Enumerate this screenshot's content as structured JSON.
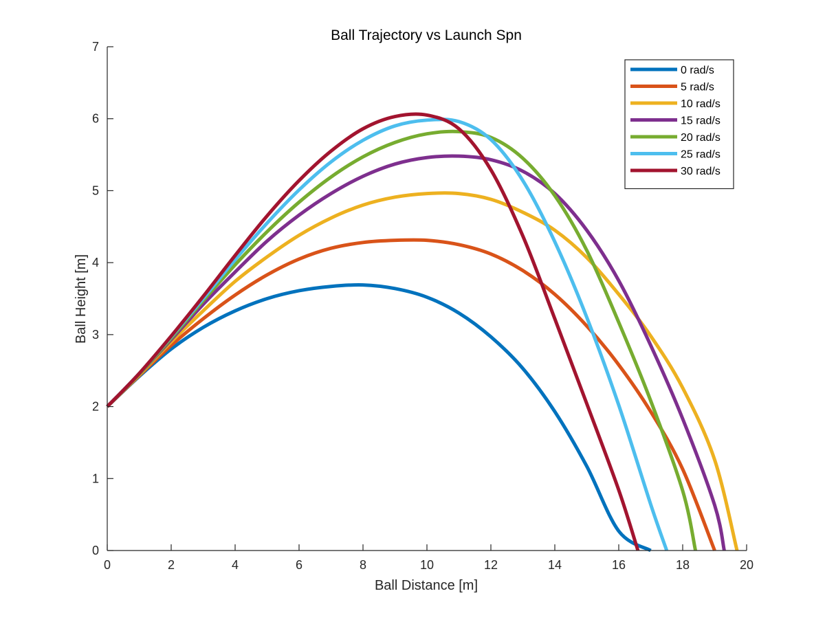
{
  "chart_data": {
    "type": "line",
    "title": "Ball Trajectory vs Launch Spn",
    "xlabel": "Ball Distance [m]",
    "ylabel": "Ball Height [m]",
    "xlim": [
      0,
      20
    ],
    "ylim": [
      0,
      7
    ],
    "xticks": [
      "0",
      "2",
      "4",
      "6",
      "8",
      "10",
      "12",
      "14",
      "16",
      "18",
      "20"
    ],
    "yticks": [
      "0",
      "1",
      "2",
      "3",
      "4",
      "5",
      "6",
      "7"
    ],
    "grid": false,
    "legend_position": "top-right",
    "series": [
      {
        "name": "0 rad/s",
        "color": "#0072BD",
        "points": [
          [
            0,
            2
          ],
          [
            1,
            2.42
          ],
          [
            2,
            2.8
          ],
          [
            3,
            3.1
          ],
          [
            4,
            3.33
          ],
          [
            5,
            3.5
          ],
          [
            6,
            3.61
          ],
          [
            7,
            3.67
          ],
          [
            8,
            3.69
          ],
          [
            9,
            3.64
          ],
          [
            10,
            3.52
          ],
          [
            11,
            3.3
          ],
          [
            12,
            2.97
          ],
          [
            13,
            2.53
          ],
          [
            14,
            1.93
          ],
          [
            15,
            1.17
          ],
          [
            16,
            0.27
          ],
          [
            17,
            0
          ]
        ]
      },
      {
        "name": "5 rad/s",
        "color": "#D95319",
        "points": [
          [
            0,
            2
          ],
          [
            1,
            2.43
          ],
          [
            2,
            2.85
          ],
          [
            3,
            3.22
          ],
          [
            4,
            3.55
          ],
          [
            5,
            3.83
          ],
          [
            6,
            4.05
          ],
          [
            7,
            4.2
          ],
          [
            8,
            4.28
          ],
          [
            9,
            4.31
          ],
          [
            10,
            4.31
          ],
          [
            11,
            4.25
          ],
          [
            12,
            4.12
          ],
          [
            13,
            3.89
          ],
          [
            14,
            3.56
          ],
          [
            15,
            3.12
          ],
          [
            16,
            2.58
          ],
          [
            17,
            1.93
          ],
          [
            18,
            1.13
          ],
          [
            19,
            0
          ]
        ]
      },
      {
        "name": "10 rad/s",
        "color": "#EDB120",
        "points": [
          [
            0,
            2
          ],
          [
            1,
            2.44
          ],
          [
            2,
            2.9
          ],
          [
            3,
            3.33
          ],
          [
            4,
            3.74
          ],
          [
            5,
            4.08
          ],
          [
            6,
            4.38
          ],
          [
            7,
            4.62
          ],
          [
            8,
            4.8
          ],
          [
            9,
            4.91
          ],
          [
            10,
            4.96
          ],
          [
            11,
            4.96
          ],
          [
            12,
            4.88
          ],
          [
            13,
            4.7
          ],
          [
            14,
            4.45
          ],
          [
            15,
            4.07
          ],
          [
            16,
            3.56
          ],
          [
            17,
            2.98
          ],
          [
            18,
            2.26
          ],
          [
            19,
            1.26
          ],
          [
            19.7,
            0
          ]
        ]
      },
      {
        "name": "15 rad/s",
        "color": "#7E2F8E",
        "points": [
          [
            0,
            2
          ],
          [
            1,
            2.45
          ],
          [
            2,
            2.93
          ],
          [
            3,
            3.42
          ],
          [
            4,
            3.87
          ],
          [
            5,
            4.3
          ],
          [
            6,
            4.66
          ],
          [
            7,
            4.96
          ],
          [
            8,
            5.2
          ],
          [
            9,
            5.37
          ],
          [
            10,
            5.46
          ],
          [
            11,
            5.48
          ],
          [
            12,
            5.43
          ],
          [
            13,
            5.27
          ],
          [
            14,
            4.96
          ],
          [
            15,
            4.45
          ],
          [
            16,
            3.75
          ],
          [
            17,
            2.85
          ],
          [
            18,
            1.83
          ],
          [
            19,
            0.63
          ],
          [
            19.3,
            0
          ]
        ]
      },
      {
        "name": "20 rad/s",
        "color": "#77AC30",
        "points": [
          [
            0,
            2
          ],
          [
            1,
            2.45
          ],
          [
            2,
            2.95
          ],
          [
            3,
            3.47
          ],
          [
            4,
            3.97
          ],
          [
            5,
            4.43
          ],
          [
            6,
            4.84
          ],
          [
            7,
            5.19
          ],
          [
            8,
            5.47
          ],
          [
            9,
            5.67
          ],
          [
            10,
            5.79
          ],
          [
            11,
            5.82
          ],
          [
            12,
            5.74
          ],
          [
            13,
            5.45
          ],
          [
            14,
            4.93
          ],
          [
            15,
            4.17
          ],
          [
            16,
            3.17
          ],
          [
            17,
            2.08
          ],
          [
            18,
            0.83
          ],
          [
            18.4,
            0
          ]
        ]
      },
      {
        "name": "25 rad/s",
        "color": "#4DBEEE",
        "points": [
          [
            0,
            2
          ],
          [
            1,
            2.46
          ],
          [
            2,
            2.97
          ],
          [
            3,
            3.5
          ],
          [
            4,
            4.04
          ],
          [
            5,
            4.55
          ],
          [
            6,
            5.01
          ],
          [
            7,
            5.4
          ],
          [
            8,
            5.7
          ],
          [
            9,
            5.9
          ],
          [
            10,
            5.98
          ],
          [
            11,
            5.96
          ],
          [
            12,
            5.71
          ],
          [
            13,
            5.14
          ],
          [
            14,
            4.29
          ],
          [
            15,
            3.24
          ],
          [
            16,
            2.02
          ],
          [
            17,
            0.64
          ],
          [
            17.5,
            0
          ]
        ]
      },
      {
        "name": "30 rad/s",
        "color": "#A2142F",
        "points": [
          [
            0,
            2
          ],
          [
            1,
            2.46
          ],
          [
            2,
            2.98
          ],
          [
            3,
            3.53
          ],
          [
            4,
            4.1
          ],
          [
            5,
            4.65
          ],
          [
            6,
            5.14
          ],
          [
            7,
            5.55
          ],
          [
            8,
            5.86
          ],
          [
            9,
            6.03
          ],
          [
            10,
            6.05
          ],
          [
            11,
            5.86
          ],
          [
            12,
            5.29
          ],
          [
            13,
            4.37
          ],
          [
            14,
            3.22
          ],
          [
            15,
            2.04
          ],
          [
            16,
            0.84
          ],
          [
            16.6,
            0
          ]
        ]
      }
    ]
  }
}
